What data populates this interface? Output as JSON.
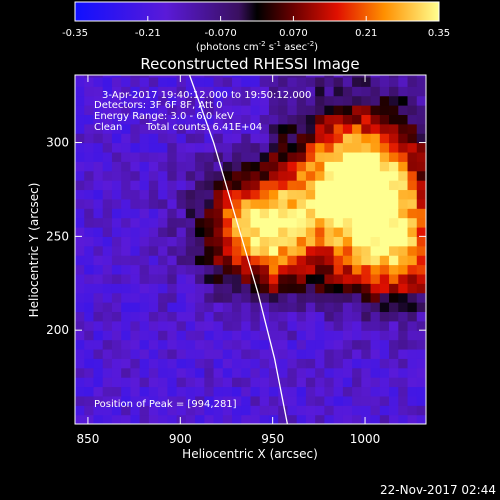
{
  "chart_data": {
    "type": "heatmap",
    "title": "Reconstructed RHESSI Image",
    "xlabel": "Heliocentric X (arcsec)",
    "ylabel": "Heliocentric Y (arcsec)",
    "xlim": [
      843,
      1033
    ],
    "ylim": [
      150,
      336
    ],
    "x_ticks": [
      "850",
      "900",
      "950",
      "1000"
    ],
    "y_ticks": [
      "200",
      "250",
      "300"
    ],
    "x_tick_values": [
      850,
      900,
      950,
      1000
    ],
    "y_tick_values": [
      200,
      250,
      300
    ],
    "colorbar": {
      "ticks": [
        "-0.35",
        "-0.21",
        "-0.070",
        "0.070",
        "0.21",
        "0.35"
      ],
      "tick_values": [
        -0.35,
        -0.21,
        -0.07,
        0.07,
        0.21,
        0.35
      ],
      "range": [
        -0.35,
        0.35
      ],
      "units_prefix": "(photons cm",
      "units_exp1": "-2",
      "units_mid": " s",
      "units_exp2": "-1",
      "units_mid2": " asec",
      "units_exp3": "-2",
      "units_suffix": ")"
    },
    "annotations": {
      "time": "3-Apr-2017 19:40:12.000 to 19:50:12.000",
      "detectors": "Detectors: 3F 6F 8F, Att 0",
      "energy": "Energy Range: 3.0 - 6.0 keV",
      "clean_label": "Clean",
      "total_counts": "Total counts: 6.41E+04",
      "peak": "Position of Peak = [994,281]"
    },
    "sources": [
      {
        "x": 994,
        "y": 281,
        "peak": 0.35
      },
      {
        "x": 940,
        "y": 252,
        "peak": 0.33
      },
      {
        "x": 1010,
        "y": 242,
        "peak": 0.22
      }
    ],
    "limb_points": [
      [
        905,
        336
      ],
      [
        918,
        300
      ],
      [
        930,
        260
      ],
      [
        942,
        220
      ],
      [
        951,
        185
      ],
      [
        958,
        150
      ]
    ]
  },
  "footer": {
    "date": "22-Nov-2017 02:44"
  }
}
